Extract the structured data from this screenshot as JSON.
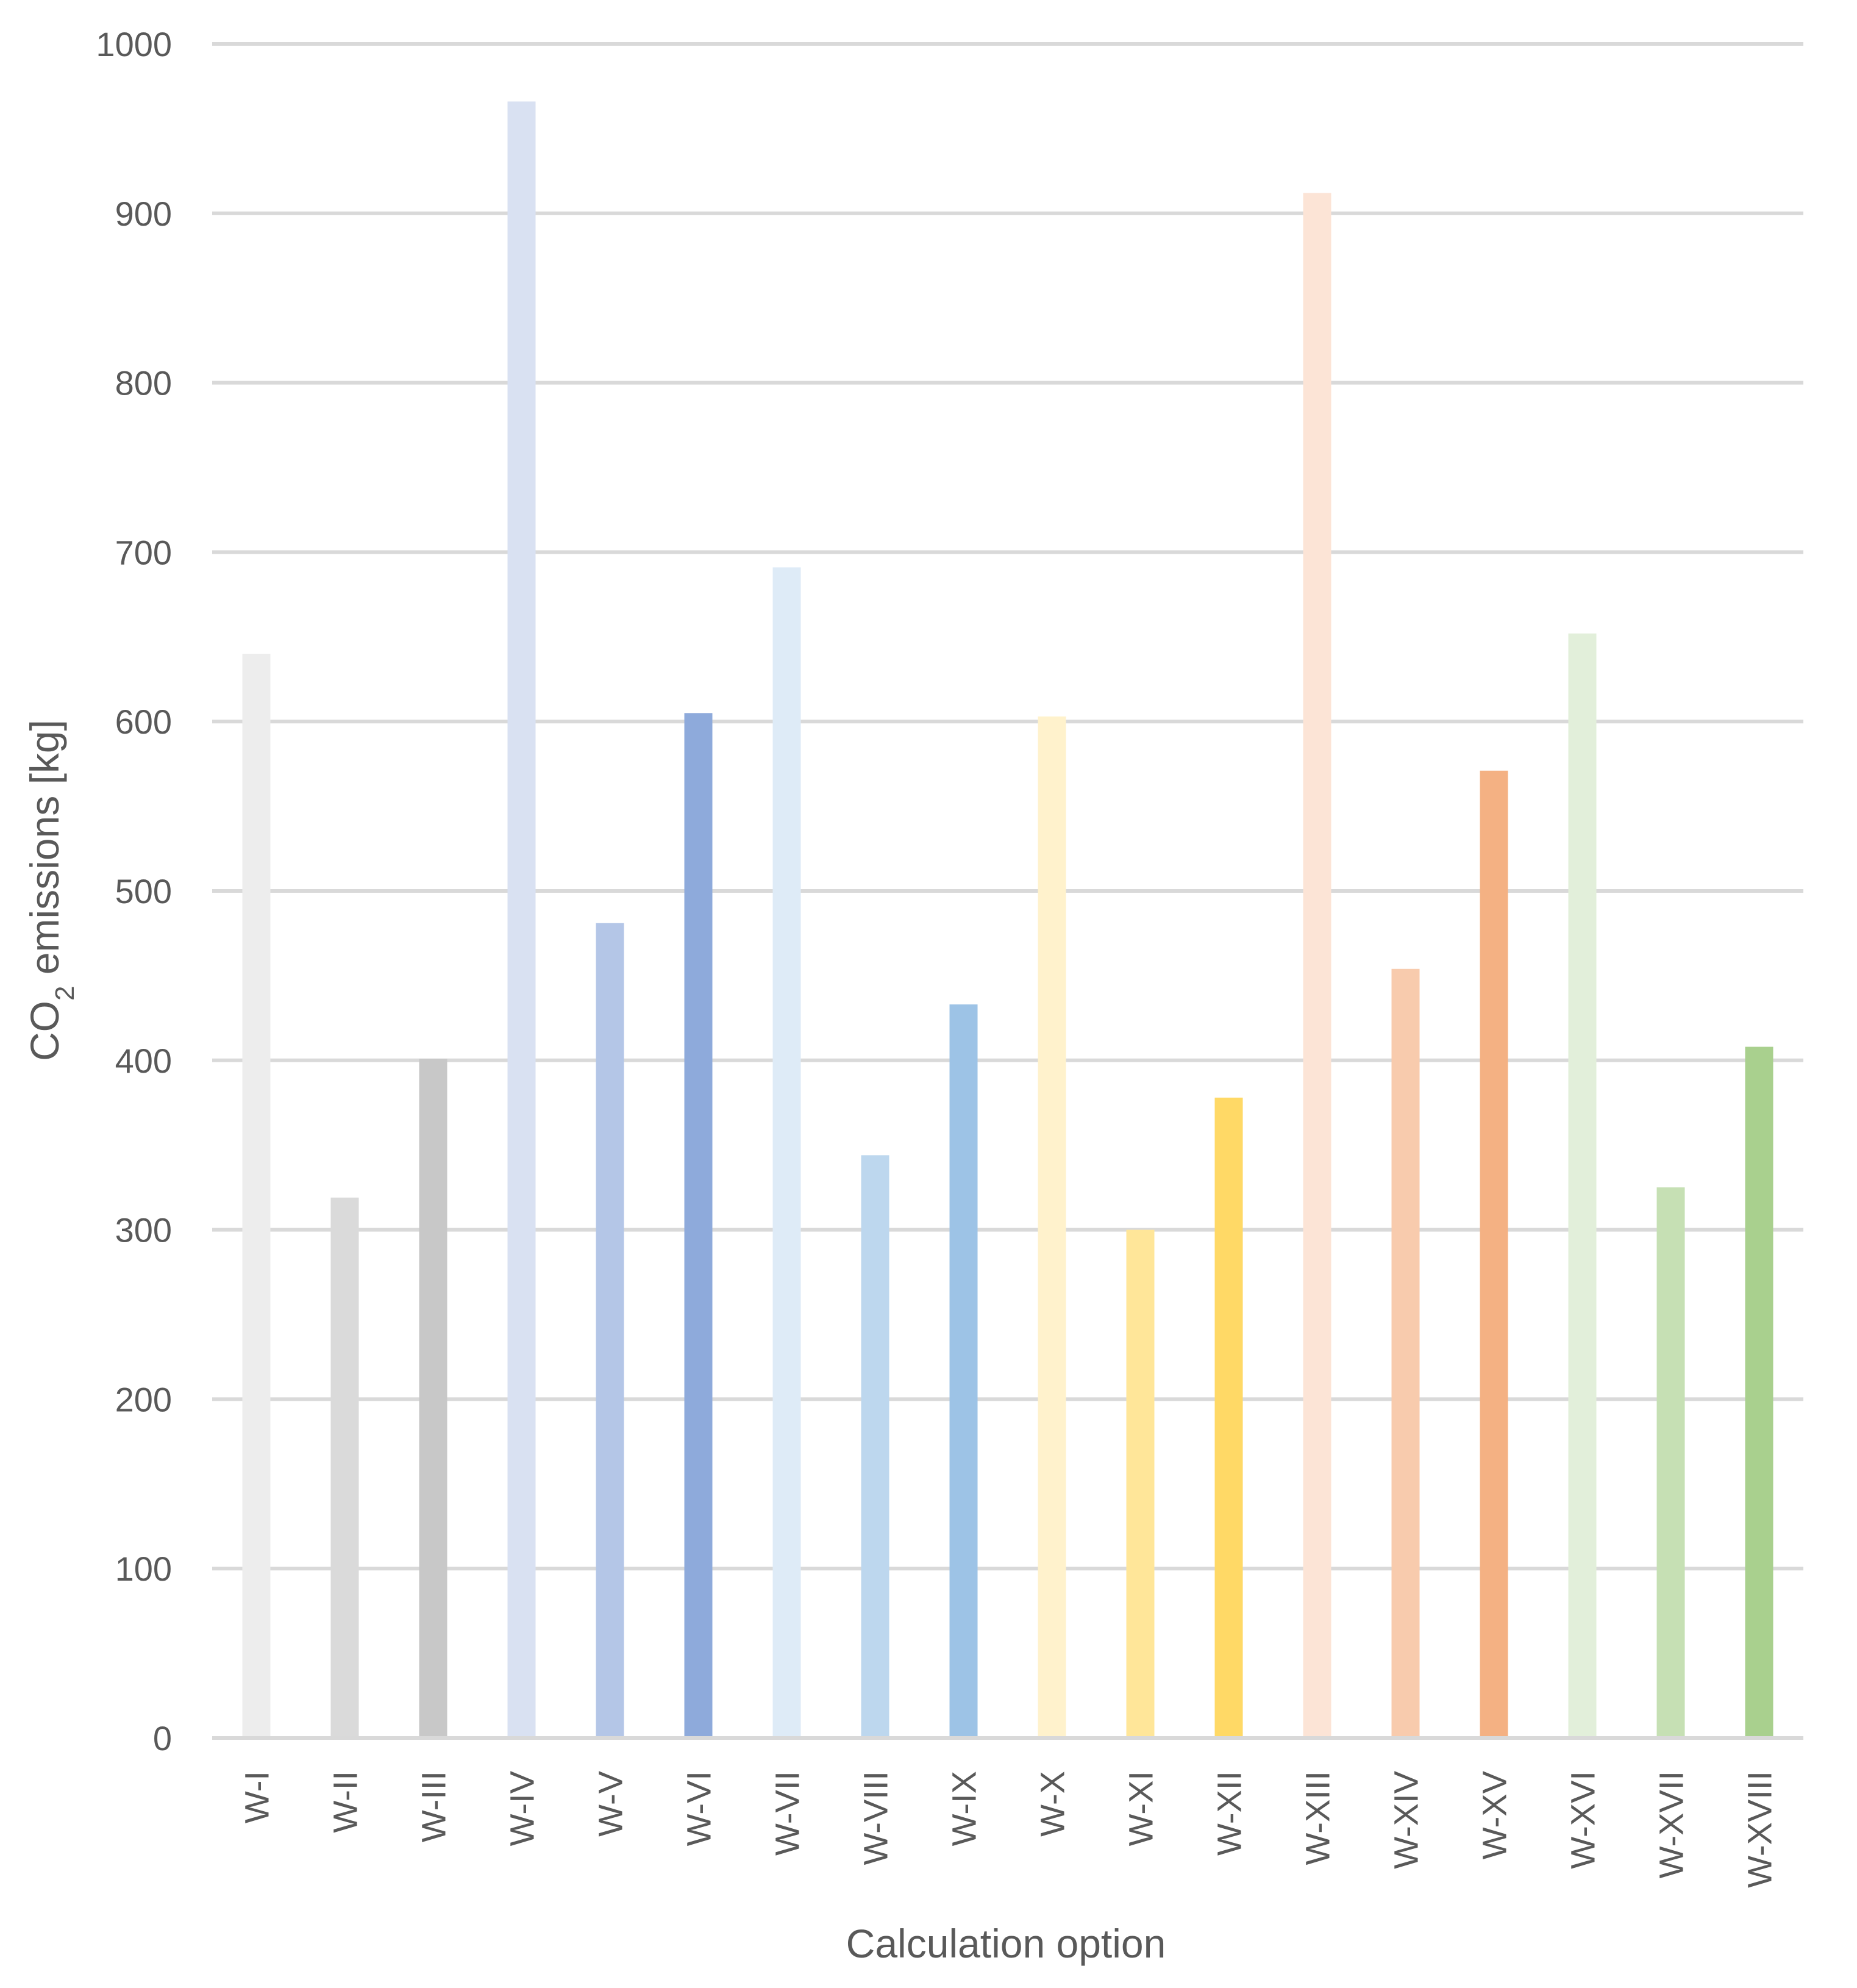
{
  "chart_data": {
    "type": "bar",
    "categories": [
      "W-I",
      "W-II",
      "W-III",
      "W-IV",
      "W-V",
      "W-VI",
      "W-VII",
      "W-VIII",
      "W-IX",
      "W-X",
      "W-XI",
      "W-XII",
      "W-XIII",
      "W-XIV",
      "W-XV",
      "W-XVI",
      "W-XVII",
      "W-XVIII"
    ],
    "values": [
      640,
      319,
      401,
      966,
      481,
      605,
      691,
      344,
      433,
      603,
      300,
      378,
      912,
      454,
      571,
      652,
      325,
      408
    ],
    "colors": [
      "#ededed",
      "#dadada",
      "#c8c8c8",
      "#d9e1f2",
      "#b4c6e7",
      "#8eaadb",
      "#deebf7",
      "#bdd7ee",
      "#9dc3e6",
      "#fff2cc",
      "#ffe699",
      "#ffd966",
      "#fce4d6",
      "#f8cbad",
      "#f4b183",
      "#e2efda",
      "#c6e0b4",
      "#a9d08e"
    ],
    "xlabel": "Calculation option",
    "ylabel_main": "CO",
    "ylabel_sub": "2",
    "ylabel_rest": " emissions [kg]",
    "ylim": [
      0,
      1000
    ],
    "yticks": [
      "0",
      "100",
      "200",
      "300",
      "400",
      "500",
      "600",
      "700",
      "800",
      "900",
      "1000"
    ],
    "grid": true,
    "gridline_color": "#d9d9d9"
  }
}
